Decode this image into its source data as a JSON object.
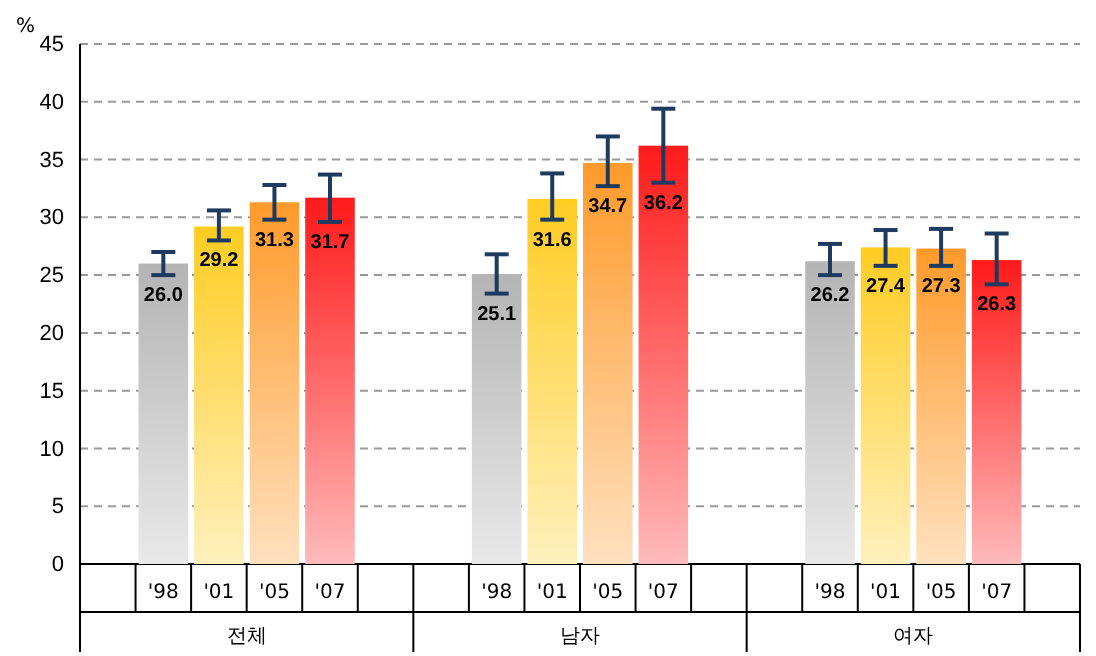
{
  "chart_data": {
    "type": "bar",
    "ylabel": "%",
    "categories": [
      "전체",
      "남자",
      "여자"
    ],
    "series": [
      {
        "name": "'98",
        "color": "#b4b4b4",
        "values": [
          26.0,
          25.1,
          26.2
        ],
        "value_labels": [
          "26.0",
          "25.1",
          "26.2"
        ],
        "errors": [
          [
            25.0,
            27.0
          ],
          [
            23.4,
            26.8
          ],
          [
            25.0,
            27.7
          ]
        ]
      },
      {
        "name": "'01",
        "color": "#ffcc22",
        "values": [
          29.2,
          31.6,
          27.4
        ],
        "value_labels": [
          "29.2",
          "31.6",
          "27.4"
        ],
        "errors": [
          [
            28.0,
            30.6
          ],
          [
            29.8,
            33.8
          ],
          [
            25.8,
            28.9
          ]
        ]
      },
      {
        "name": "'05",
        "color": "#ff9a2a",
        "values": [
          31.3,
          34.7,
          27.3
        ],
        "value_labels": [
          "31.3",
          "34.7",
          "27.3"
        ],
        "errors": [
          [
            29.8,
            32.8
          ],
          [
            32.7,
            37.0
          ],
          [
            25.8,
            29.0
          ]
        ]
      },
      {
        "name": "'07",
        "color": "#ff1a1a",
        "values": [
          31.7,
          36.2,
          26.3
        ],
        "value_labels": [
          "31.7",
          "36.2",
          "26.3"
        ],
        "errors": [
          [
            29.6,
            33.7
          ],
          [
            33.0,
            39.4
          ],
          [
            24.2,
            28.6
          ]
        ]
      }
    ],
    "ylim": [
      0,
      45
    ],
    "yticks": [
      0,
      5,
      10,
      15,
      20,
      25,
      30,
      35,
      40,
      45
    ],
    "grid": "y",
    "legend": "bottom"
  }
}
